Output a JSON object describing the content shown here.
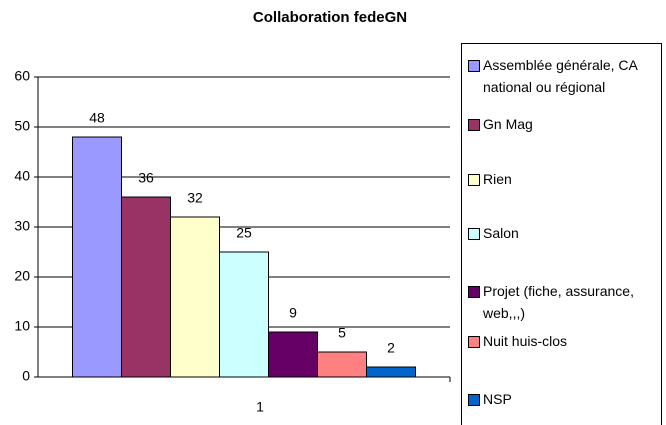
{
  "chart_data": {
    "type": "bar",
    "title": "Collaboration fedeGN",
    "categories": [
      "1"
    ],
    "series": [
      {
        "name": "Assemblée générale, CA national ou régional",
        "color": "#9999ff",
        "values": [
          48
        ]
      },
      {
        "name": "Gn Mag",
        "color": "#993366",
        "values": [
          36
        ]
      },
      {
        "name": "Rien",
        "color": "#ffffcc",
        "values": [
          32
        ]
      },
      {
        "name": "Salon",
        "color": "#ccffff",
        "values": [
          25
        ]
      },
      {
        "name": "Projet (fiche, assurance, web,,,)",
        "color": "#660066",
        "values": [
          9
        ]
      },
      {
        "name": "Nuit huis-clos",
        "color": "#ff8080",
        "values": [
          5
        ]
      },
      {
        "name": "NSP",
        "color": "#0066cc",
        "values": [
          2
        ]
      }
    ],
    "ylim": [
      0,
      60
    ],
    "yticks": [
      0,
      10,
      20,
      30,
      40,
      50,
      60
    ],
    "grid": true,
    "legend": "right"
  }
}
